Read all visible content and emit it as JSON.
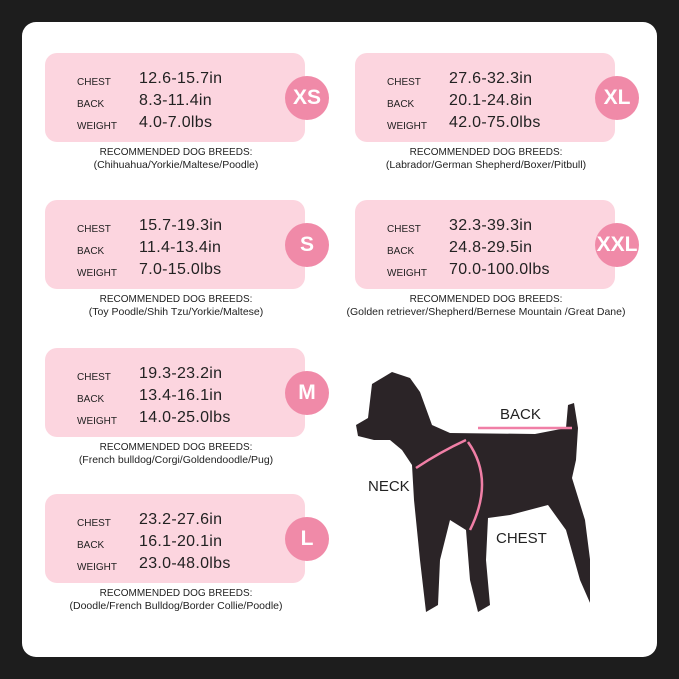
{
  "labels": {
    "chest": "CHEST",
    "back": "BACK",
    "weight": "WEIGHT",
    "recommended": "RECOMMENDED DOG BREEDS:"
  },
  "sizes": [
    {
      "size": "XS",
      "chest": "12.6-15.7in",
      "back": "8.3-11.4in",
      "weight": "4.0-7.0lbs",
      "breeds": "(Chihuahua/Yorkie/Maltese/Poodle)"
    },
    {
      "size": "S",
      "chest": "15.7-19.3in",
      "back": "11.4-13.4in",
      "weight": "7.0-15.0lbs",
      "breeds": "(Toy Poodle/Shih Tzu/Yorkie/Maltese)"
    },
    {
      "size": "M",
      "chest": "19.3-23.2in",
      "back": "13.4-16.1in",
      "weight": "14.0-25.0lbs",
      "breeds": "(French bulldog/Corgi/Goldendoodle/Pug)"
    },
    {
      "size": "L",
      "chest": "23.2-27.6in",
      "back": "16.1-20.1in",
      "weight": "23.0-48.0lbs",
      "breeds": "(Doodle/French Bulldog/Border Collie/Poodle)"
    },
    {
      "size": "XL",
      "chest": "27.6-32.3in",
      "back": "20.1-24.8in",
      "weight": "42.0-75.0lbs",
      "breeds": "(Labrador/German Shepherd/Boxer/Pitbull)"
    },
    {
      "size": "XXL",
      "chest": "32.3-39.3in",
      "back": "24.8-29.5in",
      "weight": "70.0-100.0lbs",
      "breeds": "(Golden retriever/Shepherd/Bernese Mountain /Great Dane)"
    }
  ],
  "diagram": {
    "back": "BACK",
    "neck": "NECK",
    "chest": "CHEST"
  },
  "colors": {
    "box": "#fcd5df",
    "badge": "#f08aa8",
    "background": "#1d1d1d"
  }
}
